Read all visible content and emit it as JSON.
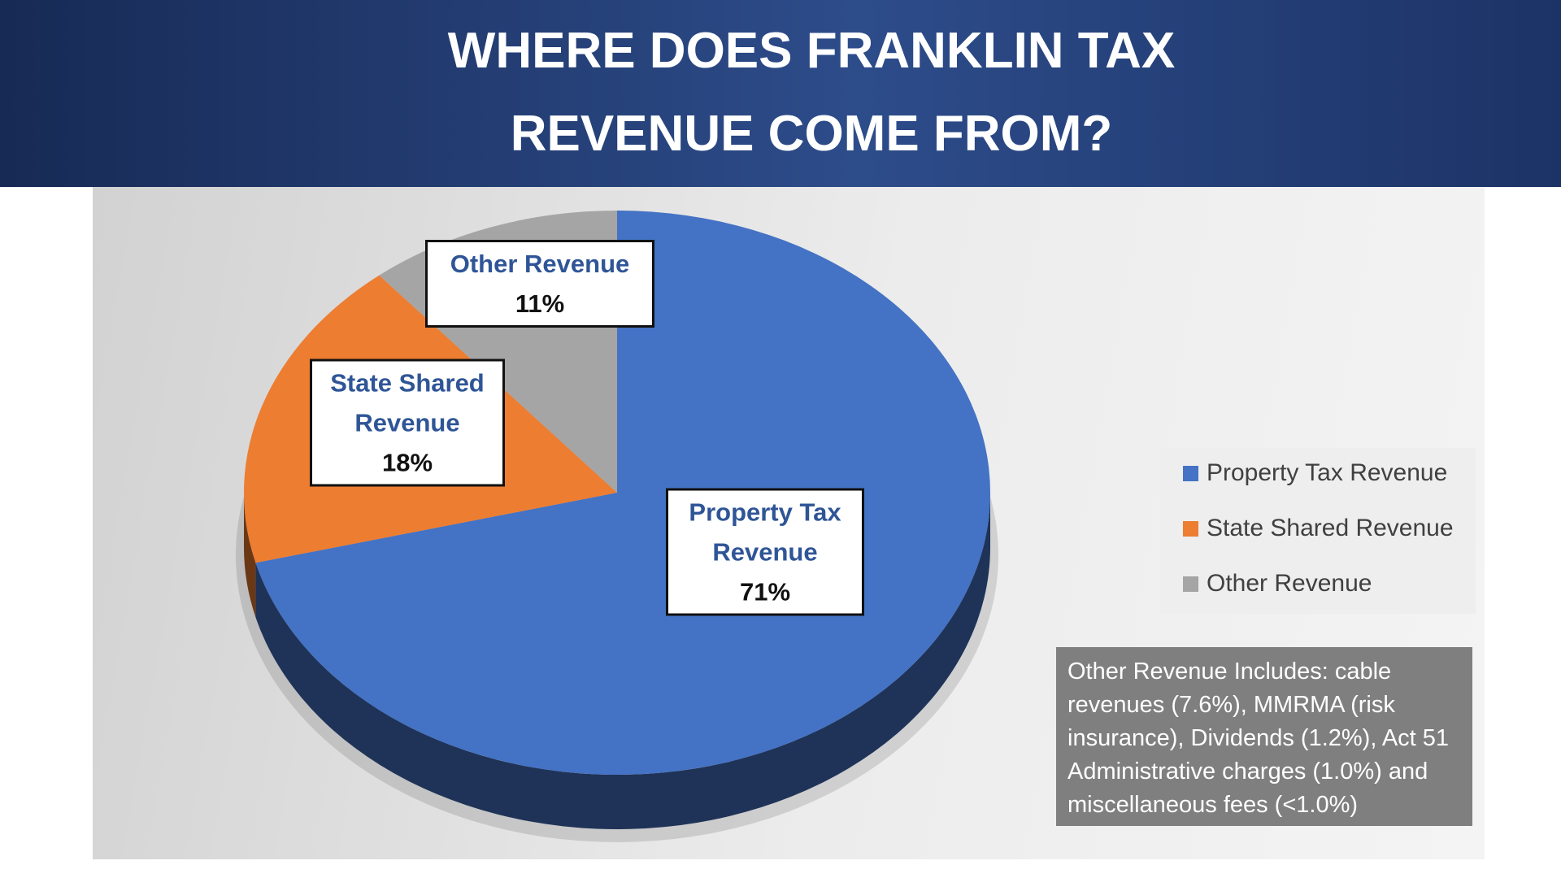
{
  "chart_data": {
    "type": "pie",
    "title": "WHERE DOES FRANKLIN TAX REVENUE COME FROM?",
    "categories": [
      "Property Tax Revenue",
      "State Shared Revenue",
      "Other Revenue"
    ],
    "values": [
      71,
      18,
      11
    ],
    "value_labels": [
      "71%",
      "18%",
      "11%"
    ],
    "colors": [
      "#4472c4",
      "#ed7d31",
      "#a5a5a5"
    ],
    "legend": "right",
    "annotation": "Other Revenue Includes: cable revenues (7.6%), MMRMA (risk insurance), Dividends (1.2%), Act 51 Administrative charges (1.0%) and miscellaneous fees (<1.0%)"
  }
}
